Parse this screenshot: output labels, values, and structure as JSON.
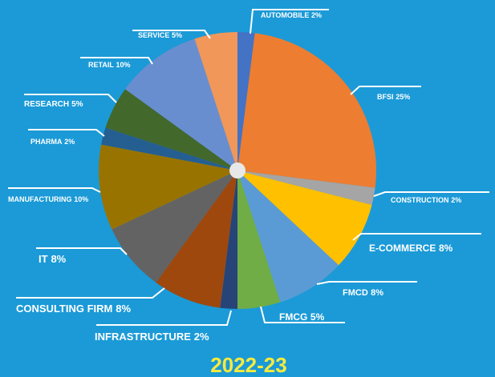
{
  "chart_data": {
    "type": "pie",
    "title": "2022-23",
    "categories": [
      "AUTOMOBILE",
      "BFSI",
      "CONSTRUCTION",
      "E-COMMERCE",
      "FMCD",
      "FMCG",
      "INFRASTRUCTURE",
      "CONSULTING FIRM",
      "IT",
      "MANUFACTURING",
      "PHARMA",
      "RESEARCH",
      "RETAIL",
      "SERVICE"
    ],
    "values": [
      2,
      25,
      2,
      8,
      8,
      5,
      2,
      8,
      8,
      10,
      2,
      5,
      10,
      5
    ],
    "value_labels": [
      "2%",
      "25%",
      "2%",
      "8%",
      "8%",
      "5%",
      "2%",
      "8%",
      "8%",
      "10%",
      "2%",
      "5%",
      "10%",
      "5%"
    ],
    "colors": [
      "#4472c4",
      "#ed7d31",
      "#a5a5a5",
      "#ffc000",
      "#5b9bd5",
      "#70ad47",
      "#264478",
      "#9e480e",
      "#636363",
      "#997300",
      "#255e91",
      "#43682b",
      "#698ed0",
      "#f1975a"
    ]
  }
}
